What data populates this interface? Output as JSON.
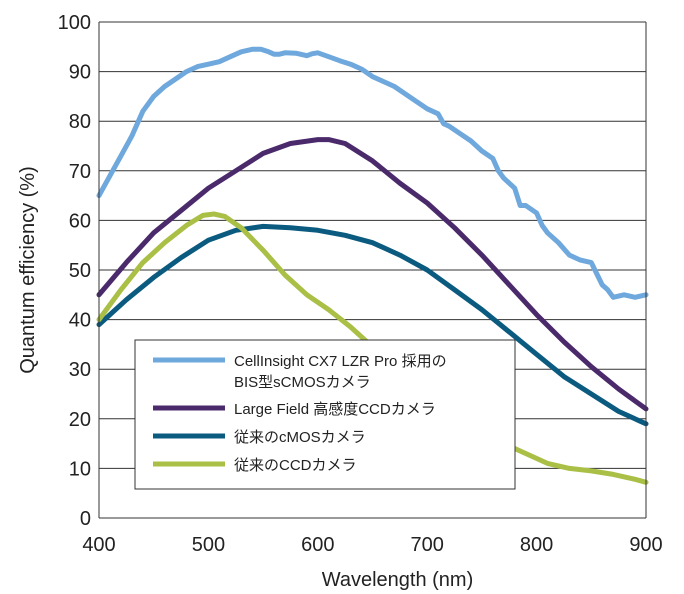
{
  "chart_data": {
    "type": "line",
    "xlabel": "Wavelength (nm)",
    "ylabel": "Quantum efficiency (%)",
    "xlim": [
      400,
      900
    ],
    "ylim": [
      0,
      100
    ],
    "xticks": [
      400,
      500,
      600,
      700,
      800,
      900
    ],
    "yticks": [
      0,
      10,
      20,
      30,
      40,
      50,
      60,
      70,
      80,
      90,
      100
    ],
    "grid": "horizontal",
    "legend_position": "bottom-left",
    "series": [
      {
        "name": "CellInsight CX7 LZR Pro 採用の",
        "name_line2": "BIS型sCMOSカメラ",
        "color": "#6fa8dc",
        "x": [
          400,
          410,
          420,
          430,
          440,
          450,
          460,
          470,
          480,
          490,
          500,
          510,
          520,
          530,
          540,
          548,
          555,
          560,
          565,
          570,
          580,
          590,
          595,
          600,
          610,
          620,
          630,
          640,
          650,
          660,
          670,
          680,
          690,
          700,
          710,
          715,
          720,
          730,
          740,
          750,
          760,
          765,
          770,
          780,
          785,
          790,
          800,
          805,
          810,
          820,
          830,
          835,
          840,
          850,
          860,
          865,
          870,
          880,
          890,
          900
        ],
        "y": [
          65,
          69,
          73,
          77,
          82,
          85,
          87,
          88.5,
          90,
          91,
          91.5,
          92,
          93,
          94,
          94.5,
          94.5,
          94,
          93.5,
          93.5,
          93.8,
          93.7,
          93.2,
          93.6,
          93.8,
          93,
          92.2,
          91.5,
          90.5,
          89,
          88,
          87,
          85.5,
          84,
          82.5,
          81.5,
          79.5,
          79,
          77.5,
          76,
          74,
          72.5,
          70,
          68.5,
          66.5,
          63,
          63,
          61.5,
          59,
          57.5,
          55.5,
          53,
          52.5,
          52,
          51.5,
          47,
          46,
          44.5,
          45,
          44.5,
          45
        ]
      },
      {
        "name": "Large Field 高感度CCDカメラ",
        "color": "#4b2a6b",
        "x": [
          400,
          425,
          450,
          475,
          500,
          525,
          550,
          575,
          600,
          610,
          625,
          650,
          675,
          700,
          725,
          750,
          775,
          800,
          825,
          850,
          875,
          900
        ],
        "y": [
          45,
          51.5,
          57.5,
          62,
          66.5,
          70,
          73.5,
          75.5,
          76.3,
          76.3,
          75.5,
          72,
          67.5,
          63.5,
          58.5,
          53,
          47,
          41,
          35.5,
          30.5,
          26,
          22
        ]
      },
      {
        "name": "従来のcMOSカメラ",
        "color": "#0b5a7f",
        "x": [
          400,
          425,
          450,
          475,
          500,
          525,
          550,
          575,
          600,
          625,
          650,
          675,
          700,
          725,
          750,
          775,
          800,
          825,
          850,
          875,
          900
        ],
        "y": [
          39,
          44,
          48.5,
          52.5,
          56,
          58,
          58.8,
          58.5,
          58,
          57,
          55.5,
          53,
          50,
          46,
          42,
          37.5,
          33,
          28.5,
          25,
          21.5,
          19
        ]
      },
      {
        "name": "従来のCCDカメラ",
        "color": "#a9bf45",
        "x": [
          400,
          420,
          440,
          460,
          480,
          495,
          505,
          515,
          530,
          550,
          570,
          590,
          610,
          630,
          650,
          670,
          690,
          710,
          730,
          750,
          770,
          790,
          810,
          830,
          850,
          870,
          890,
          900
        ],
        "y": [
          40,
          46,
          51.5,
          55.5,
          59,
          61,
          61.3,
          60.8,
          58.5,
          54,
          49,
          45,
          42,
          38.5,
          34.5,
          30.5,
          27,
          23.5,
          20.5,
          17.5,
          15,
          13,
          11,
          10,
          9.5,
          8.8,
          7.8,
          7.2
        ]
      }
    ]
  }
}
